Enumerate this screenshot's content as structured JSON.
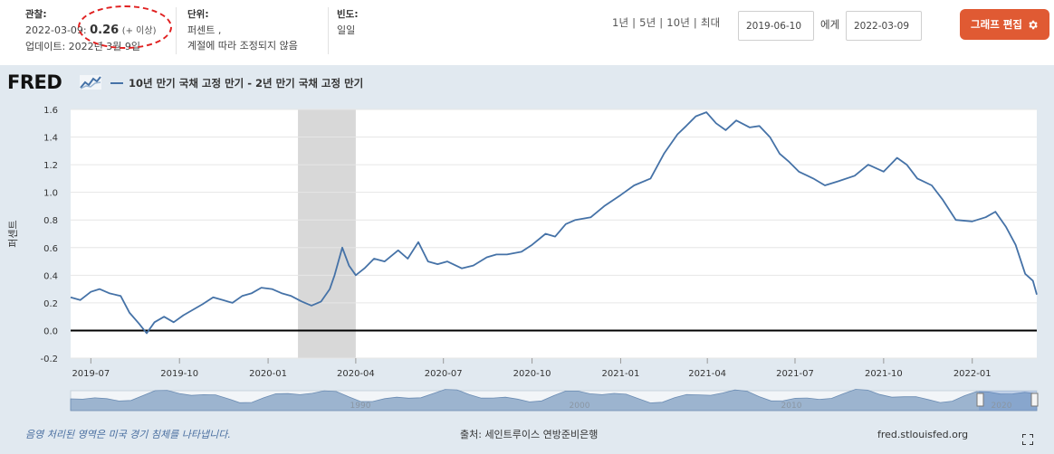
{
  "header": {
    "observation": {
      "label": "관찰:",
      "date": "2022-03-09:",
      "value": "0.26",
      "note": "(+ 이상)",
      "updated": "업데이트: 2022년 3월 9일"
    },
    "units": {
      "label": "단위:",
      "line1": "퍼센트 ,",
      "line2": "계절에 따라 조정되지 않음"
    },
    "frequency": {
      "label": "빈도:",
      "value": "일일"
    },
    "ranges": [
      "1년",
      "5년",
      "10년",
      "최대"
    ],
    "range_separator": " | ",
    "start_date": "2019-06-10",
    "to_label": "에게",
    "end_date": "2022-03-09",
    "edit_button": "그래프 편집",
    "annotation_color": "#e02020"
  },
  "logo": {
    "text": "FRED"
  },
  "colors": {
    "series": "#4572a7",
    "recession": "#d8d8d8",
    "panel_bg": "#e1e9f0",
    "edit_button": "#e05a33",
    "zero_line": "#000000"
  },
  "chart_data": {
    "type": "line",
    "title": "",
    "ylabel": "퍼센트",
    "xlabel": "",
    "ylim": [
      -0.2,
      1.6
    ],
    "yticks": [
      -0.2,
      0.0,
      0.2,
      0.4,
      0.6,
      0.8,
      1.0,
      1.2,
      1.4,
      1.6
    ],
    "ytick_labels": [
      "-0.2",
      "0.0",
      "0.2",
      "0.4",
      "0.6",
      "0.8",
      "1.0",
      "1.2",
      "1.4",
      "1.6"
    ],
    "xlim": [
      "2019-06-10",
      "2022-03-09"
    ],
    "xticks": [
      "2019-07-01",
      "2019-10-01",
      "2020-01-01",
      "2020-04-01",
      "2020-07-01",
      "2020-10-01",
      "2021-01-01",
      "2021-04-01",
      "2021-07-01",
      "2021-10-01",
      "2022-01-01"
    ],
    "xtick_labels": [
      "2019-07",
      "2019-10",
      "2020-01",
      "2020-04",
      "2020-07",
      "2020-10",
      "2021-01",
      "2021-04",
      "2021-07",
      "2021-10",
      "2022-01"
    ],
    "grid": true,
    "recession_shading": {
      "start": "2020-02-01",
      "end": "2020-04-01"
    },
    "series": [
      {
        "name": "10년 만기 국채 고정 만기 - 2년 만기 국채 고정 만기",
        "x": [
          "2019-06-10",
          "2019-06-20",
          "2019-07-01",
          "2019-07-10",
          "2019-07-20",
          "2019-08-01",
          "2019-08-10",
          "2019-08-20",
          "2019-08-28",
          "2019-09-05",
          "2019-09-15",
          "2019-09-25",
          "2019-10-05",
          "2019-10-15",
          "2019-10-25",
          "2019-11-05",
          "2019-11-15",
          "2019-11-25",
          "2019-12-05",
          "2019-12-15",
          "2019-12-25",
          "2020-01-05",
          "2020-01-15",
          "2020-01-25",
          "2020-02-05",
          "2020-02-15",
          "2020-02-25",
          "2020-03-05",
          "2020-03-10",
          "2020-03-18",
          "2020-03-25",
          "2020-04-01",
          "2020-04-10",
          "2020-04-20",
          "2020-05-01",
          "2020-05-15",
          "2020-05-25",
          "2020-06-05",
          "2020-06-15",
          "2020-06-25",
          "2020-07-05",
          "2020-07-20",
          "2020-08-01",
          "2020-08-15",
          "2020-08-25",
          "2020-09-05",
          "2020-09-20",
          "2020-10-01",
          "2020-10-15",
          "2020-10-25",
          "2020-11-05",
          "2020-11-15",
          "2020-12-01",
          "2020-12-15",
          "2021-01-01",
          "2021-01-15",
          "2021-02-01",
          "2021-02-15",
          "2021-03-01",
          "2021-03-10",
          "2021-03-20",
          "2021-03-31",
          "2021-04-10",
          "2021-04-20",
          "2021-05-01",
          "2021-05-15",
          "2021-05-25",
          "2021-06-05",
          "2021-06-15",
          "2021-06-25",
          "2021-07-05",
          "2021-07-20",
          "2021-08-01",
          "2021-08-15",
          "2021-09-01",
          "2021-09-15",
          "2021-10-01",
          "2021-10-15",
          "2021-10-25",
          "2021-11-05",
          "2021-11-20",
          "2021-12-01",
          "2021-12-15",
          "2022-01-01",
          "2022-01-15",
          "2022-01-25",
          "2022-02-05",
          "2022-02-15",
          "2022-02-25",
          "2022-03-05",
          "2022-03-09"
        ],
        "y": [
          0.24,
          0.22,
          0.28,
          0.3,
          0.27,
          0.25,
          0.13,
          0.05,
          -0.02,
          0.06,
          0.1,
          0.06,
          0.11,
          0.15,
          0.19,
          0.24,
          0.22,
          0.2,
          0.25,
          0.27,
          0.31,
          0.3,
          0.27,
          0.25,
          0.21,
          0.18,
          0.21,
          0.3,
          0.4,
          0.6,
          0.47,
          0.4,
          0.45,
          0.52,
          0.5,
          0.58,
          0.52,
          0.64,
          0.5,
          0.48,
          0.5,
          0.45,
          0.47,
          0.53,
          0.55,
          0.55,
          0.57,
          0.62,
          0.7,
          0.68,
          0.77,
          0.8,
          0.82,
          0.9,
          0.98,
          1.05,
          1.1,
          1.28,
          1.42,
          1.48,
          1.55,
          1.58,
          1.5,
          1.45,
          1.52,
          1.47,
          1.48,
          1.4,
          1.28,
          1.22,
          1.15,
          1.1,
          1.05,
          1.08,
          1.12,
          1.2,
          1.15,
          1.25,
          1.2,
          1.1,
          1.05,
          0.95,
          0.8,
          0.79,
          0.82,
          0.86,
          0.75,
          0.62,
          0.41,
          0.36,
          0.26
        ]
      }
    ]
  },
  "navigator": {
    "labels": [
      "1990",
      "2000",
      "2010",
      "2020"
    ]
  },
  "footer": {
    "recession_note": "음영 처리된 영역은 미국 경기 침체를 나타냅니다.",
    "source": "출처: 세인트루이스 연방준비은행",
    "site": "fred.stlouisfed.org"
  }
}
